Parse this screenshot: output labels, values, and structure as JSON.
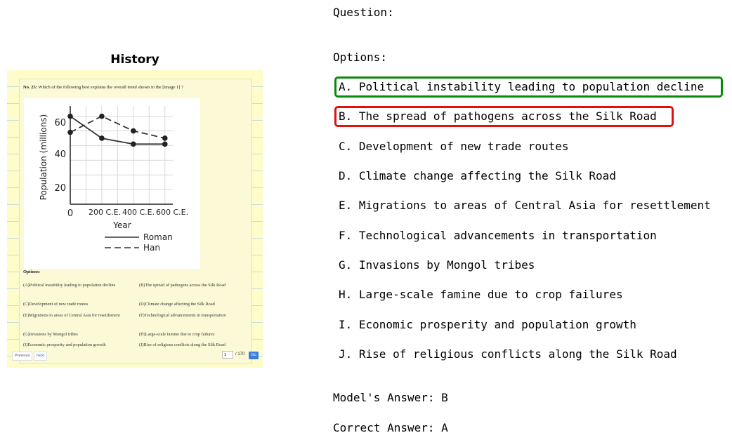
{
  "left_panel": {
    "title": "History",
    "screenshot": {
      "question_number": "No. 25:",
      "question_text": "Which of the following best explains the overall trend shown in the  [image 1] ?",
      "graph": {
        "y_ticks": [
          "0",
          "20",
          "40",
          "60"
        ],
        "x_ticks": [
          "200 C.E.",
          "400 C.E.",
          "600 C.E."
        ],
        "y_label": "Population (millions)",
        "x_label": "Year",
        "legend": [
          "Roman",
          "Han"
        ],
        "series": [
          {
            "name": "Roman",
            "x": [
              0,
              200,
              400,
              600
            ],
            "y": [
              60,
              45,
              41,
              41
            ]
          },
          {
            "name": "Han",
            "x": [
              0,
              200,
              400,
              600
            ],
            "y": [
              49,
              60,
              50,
              45
            ]
          }
        ],
        "xlim": [
          0,
          650
        ],
        "ylim": [
          0,
          67
        ]
      },
      "options_heading": "Options:",
      "options": [
        "(A)Political instability leading to population decline",
        "(B)The spread of pathogens across the Silk Road",
        "(C)Development of new trade routes",
        "(D)Climate change affecting the Silk Road",
        "(E)Migrations to areas of Central Asia for resettlement",
        "(F)Technological advancements in transportation",
        "(G)Invasions by Mongol tribes",
        "(H)Large-scale famine due to crop failures",
        "(I)Economic prosperity and population growth",
        "(J)Rise of religious conflicts along the Silk Road"
      ],
      "pager": {
        "previous": "Previous",
        "next": "Next",
        "page_value": "1",
        "page_total": "/ 170",
        "go": "Go"
      }
    }
  },
  "right_panel": {
    "question_label": "Question:",
    "options_label": "Options:",
    "options": [
      "A. Political instability leading to population decline",
      "B. The spread of pathogens across the Silk Road",
      "C. Development of new trade routes",
      "D. Climate change affecting the Silk Road",
      "E. Migrations to areas of Central Asia for resettlement",
      "F. Technological advancements in transportation",
      "G. Invasions by Mongol tribes",
      "H. Large-scale famine due to crop failures",
      "I. Economic prosperity and population growth",
      "J. Rise of religious conflicts along the Silk Road"
    ],
    "model_answer": "Model's Answer: B",
    "correct_answer": "Correct Answer: A",
    "highlight_colors": {
      "correct": "#0a8a0a",
      "model": "#e01010"
    }
  }
}
